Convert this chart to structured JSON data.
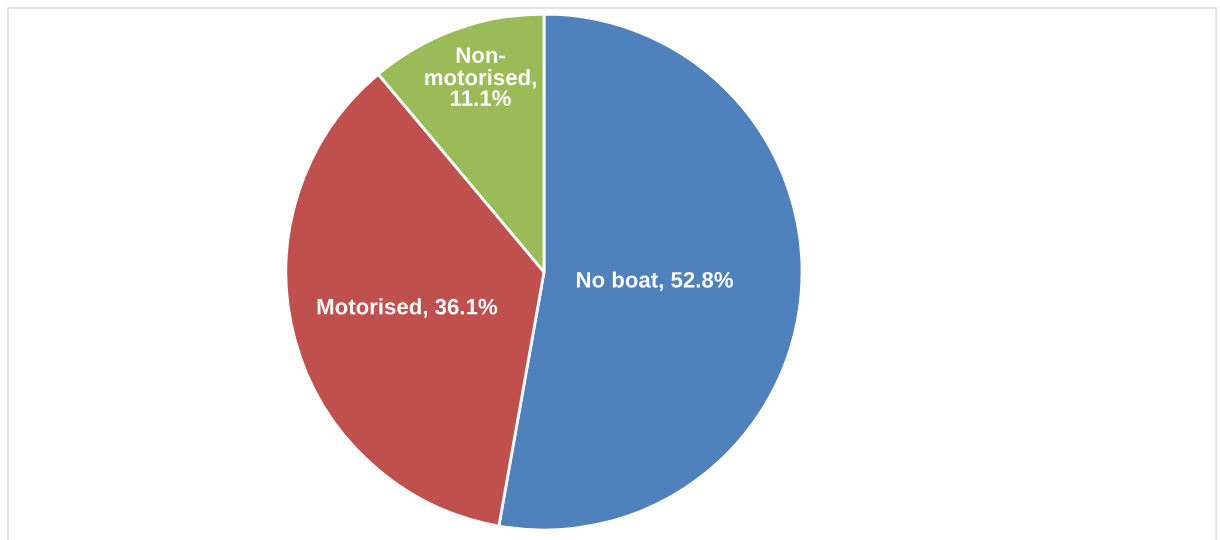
{
  "chart_data": {
    "type": "pie",
    "categories": [
      "No boat",
      "Motorised",
      "Non-motorised"
    ],
    "values": [
      52.8,
      36.1,
      11.1
    ],
    "colors": [
      "#4f81bd",
      "#c0504d",
      "#9bbb59"
    ],
    "value_labels": [
      ", 52.8%",
      ", 36.1%",
      ", 11.1%"
    ]
  }
}
